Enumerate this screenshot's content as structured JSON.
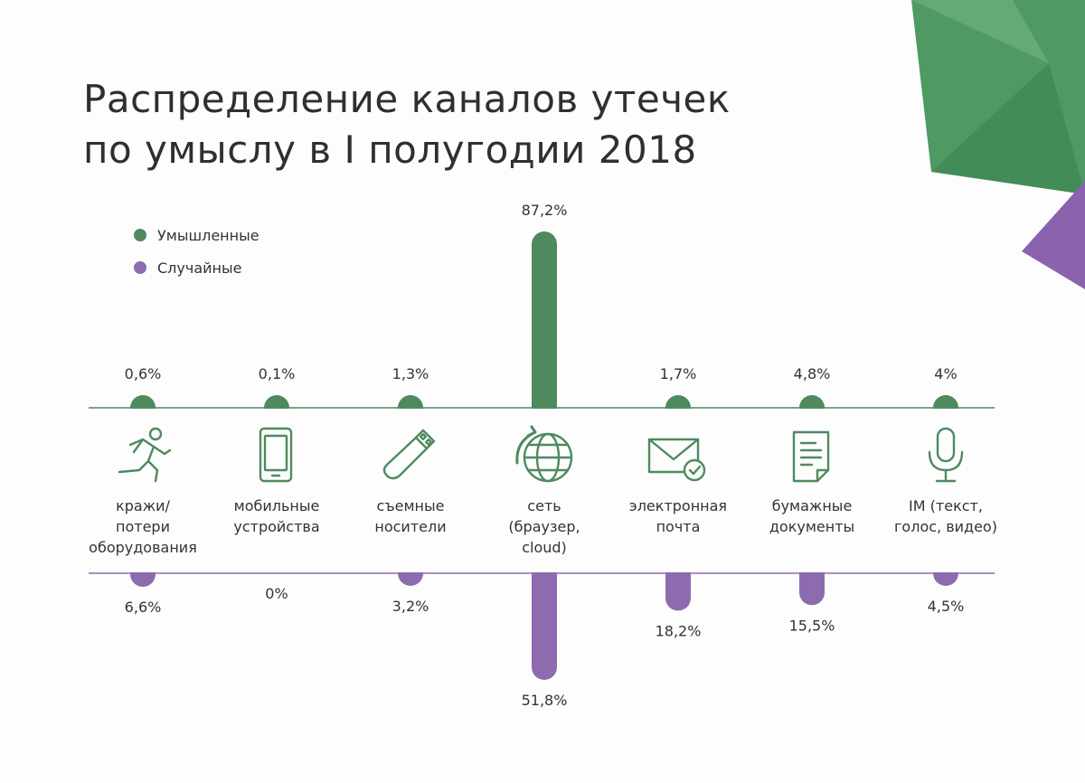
{
  "title": {
    "line1": "Распределение каналов утечек",
    "line2": "по умыслу в I полугодии 2018"
  },
  "legend": [
    {
      "label": "Умышленные",
      "color": "#4e8a5e"
    },
    {
      "label": "Случайные",
      "color": "#8c6cae"
    }
  ],
  "categories": [
    {
      "label": "кражи/\nпотери\nоборудования",
      "icon": "running-man-icon"
    },
    {
      "label": "мобильные\nустройства",
      "icon": "smartphone-icon"
    },
    {
      "label": "съемные\nносители",
      "icon": "usb-drive-icon"
    },
    {
      "label": "сеть\n(браузер,\ncloud)",
      "icon": "globe-network-icon"
    },
    {
      "label": "электронная\nпочта",
      "icon": "envelope-check-icon"
    },
    {
      "label": "бумажные\nдокументы",
      "icon": "paper-document-icon"
    },
    {
      "label": "IM (текст,\nголос, видео)",
      "icon": "microphone-icon"
    }
  ],
  "chart_data": {
    "type": "bar",
    "title": "Распределение каналов утечек по умыслу в I полугодии 2018",
    "categories": [
      "кражи/потери оборудования",
      "мобильные устройства",
      "съемные носители",
      "сеть (браузер, cloud)",
      "электронная почта",
      "бумажные документы",
      "IM (текст, голос, видео)"
    ],
    "series": [
      {
        "name": "Умышленные",
        "color": "#4e8a5e",
        "direction": "up",
        "values": [
          0.6,
          0.1,
          1.3,
          87.2,
          1.7,
          4.8,
          4.0
        ],
        "labels": [
          "0,6%",
          "0,1%",
          "1,3%",
          "87,2%",
          "1,7%",
          "4,8%",
          "4%"
        ]
      },
      {
        "name": "Случайные",
        "color": "#8c6cae",
        "direction": "down",
        "values": [
          6.6,
          0.0,
          3.2,
          51.8,
          18.2,
          15.5,
          4.5
        ],
        "labels": [
          "6,6%",
          "0%",
          "3,2%",
          "51,8%",
          "18,2%",
          "15,5%",
          "4,5%"
        ]
      }
    ],
    "grid": false,
    "legend_position": "top-left"
  }
}
